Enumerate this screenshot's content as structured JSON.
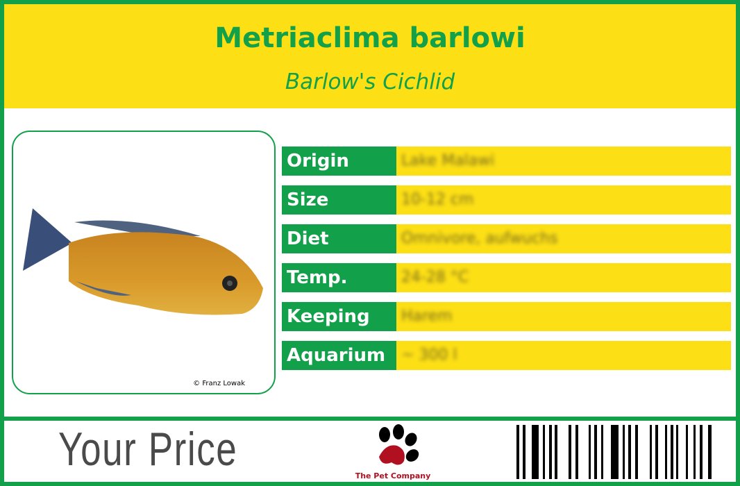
{
  "header": {
    "title": "Metriaclima barlowi",
    "subtitle": "Barlow's Cichlid"
  },
  "photo": {
    "credit": "© Franz Lowak"
  },
  "facts": [
    {
      "label": "Origin",
      "value": "Lake Malawi"
    },
    {
      "label": "Size",
      "value": "10-12 cm"
    },
    {
      "label": "Diet",
      "value": "Omnivore, aufwuchs"
    },
    {
      "label": "Temp.",
      "value": "24-28 °C"
    },
    {
      "label": "Keeping",
      "value": "Harem"
    },
    {
      "label": "Aquarium",
      "value": "~ 300 l"
    }
  ],
  "footer": {
    "price_label": "Your Price",
    "logo_text": "The Pet Company"
  },
  "colors": {
    "green": "#12a04a",
    "yellow": "#fddf16",
    "logo_red": "#b01020"
  }
}
